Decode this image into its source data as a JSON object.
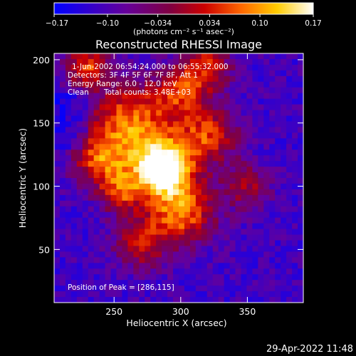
{
  "chart_data": {
    "type": "heatmap",
    "title": "Reconstructed RHESSI Image",
    "xlabel": "Heliocentric X (arcsec)",
    "ylabel": "Heliocentric Y (arcsec)",
    "xlim": [
      205,
      392
    ],
    "ylim": [
      8,
      205
    ],
    "xticks": [
      250,
      300,
      350
    ],
    "yticks": [
      50,
      100,
      150,
      200
    ],
    "colorbar": {
      "label": "(photons cm⁻² s⁻¹ asec⁻²)",
      "range": [
        -0.17,
        0.17
      ],
      "ticks": [
        -0.17,
        -0.1,
        -0.034,
        0.034,
        0.1,
        0.17
      ],
      "tick_labels": [
        "−0.17",
        "−0.10",
        "−0.034",
        "0.034",
        "0.10",
        "0.17"
      ],
      "colors": [
        "#0000ff",
        "#3300cc",
        "#660099",
        "#800040",
        "#cc0000",
        "#ff6600",
        "#ffcc00",
        "#ffffff"
      ]
    },
    "annotations": [
      "1-Jun-2002 06:54:24.000 to 06:55:32.000",
      "Detectors: 3F 4F 5F 6F 7F 8F, Att 1",
      "Energy Range: 6.0 - 12.0 keV",
      "Clean",
      "Total counts: 3.48E+03"
    ],
    "peak_label": "Position of Peak = [286,115]",
    "peak": [
      286,
      115
    ],
    "grid": false
  },
  "timestamp": "29-Apr-2022 11:48"
}
